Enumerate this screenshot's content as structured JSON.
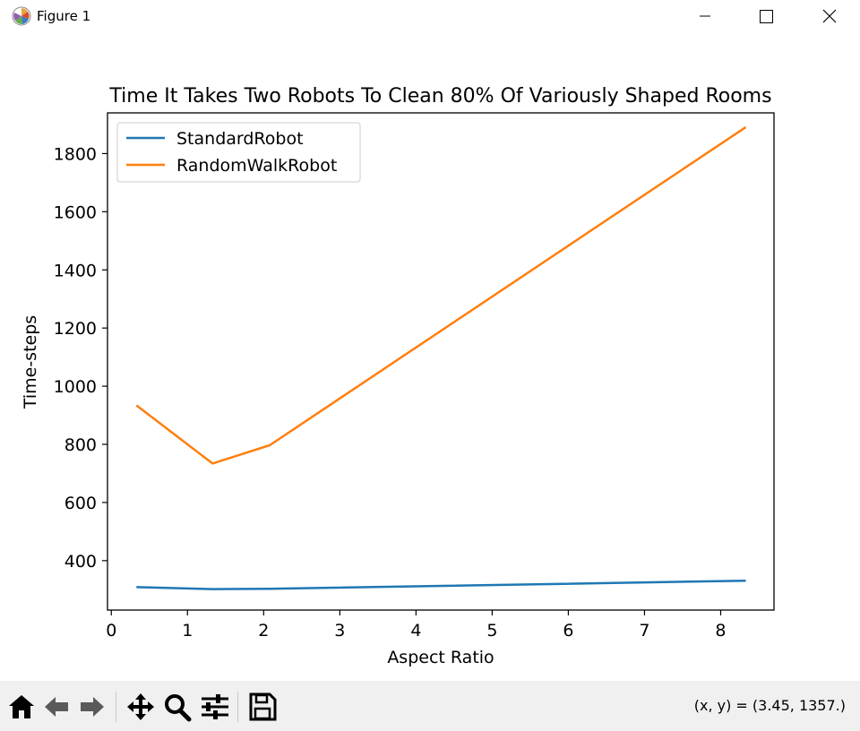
{
  "window": {
    "title": "Figure 1",
    "icons": [
      "matplotlib-icon",
      "minimize-icon",
      "maximize-icon",
      "close-icon"
    ]
  },
  "toolbar": {
    "buttons": [
      "home-icon",
      "back-icon",
      "forward-icon",
      "pan-icon",
      "zoom-icon",
      "configure-subplots-icon",
      "save-icon"
    ],
    "coords": "(x, y) = (3.45, 1357.)"
  },
  "colors": {
    "standard": "#1f77b4",
    "random": "#ff7f0e"
  },
  "chart_data": {
    "type": "line",
    "title": "Time It Takes Two Robots To Clean 80% Of Variously Shaped Rooms",
    "xlabel": "Aspect Ratio",
    "ylabel": "Time-steps",
    "xlim": [
      -0.05,
      8.7
    ],
    "ylim": [
      230,
      1940
    ],
    "xticks": [
      0,
      1,
      2,
      3,
      4,
      5,
      6,
      7,
      8
    ],
    "yticks": [
      400,
      600,
      800,
      1000,
      1200,
      1400,
      1600,
      1800
    ],
    "legend_position": "top-left",
    "grid": false,
    "series": [
      {
        "name": "StandardRobot",
        "color": "#1f77b4",
        "x": [
          0.33,
          1.33,
          2.08,
          8.33
        ],
        "y": [
          309,
          302,
          303,
          331
        ]
      },
      {
        "name": "RandomWalkRobot",
        "color": "#ff7f0e",
        "x": [
          0.33,
          1.33,
          2.08,
          8.33
        ],
        "y": [
          934,
          734,
          797,
          1891
        ]
      }
    ]
  }
}
